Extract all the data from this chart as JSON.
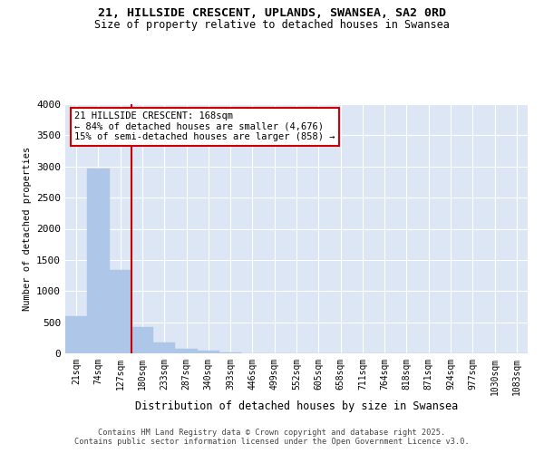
{
  "title": "21, HILLSIDE CRESCENT, UPLANDS, SWANSEA, SA2 0RD",
  "subtitle": "Size of property relative to detached houses in Swansea",
  "xlabel": "Distribution of detached houses by size in Swansea",
  "ylabel": "Number of detached properties",
  "bar_color": "#aec6e8",
  "bar_edge_color": "#aec6e8",
  "vline_color": "#cc0000",
  "vline_x": 2.5,
  "annotation_text": "21 HILLSIDE CRESCENT: 168sqm\n← 84% of detached houses are smaller (4,676)\n15% of semi-detached houses are larger (858) →",
  "annotation_box_color": "#cc0000",
  "background_color": "#dce6f5",
  "grid_color": "#ffffff",
  "categories": [
    "21sqm",
    "74sqm",
    "127sqm",
    "180sqm",
    "233sqm",
    "287sqm",
    "340sqm",
    "393sqm",
    "446sqm",
    "499sqm",
    "552sqm",
    "605sqm",
    "658sqm",
    "711sqm",
    "764sqm",
    "818sqm",
    "871sqm",
    "924sqm",
    "977sqm",
    "1030sqm",
    "1083sqm"
  ],
  "values": [
    590,
    2970,
    1340,
    420,
    170,
    80,
    45,
    15,
    0,
    0,
    0,
    0,
    0,
    0,
    0,
    0,
    0,
    0,
    0,
    0,
    0
  ],
  "ylim": [
    0,
    4000
  ],
  "yticks": [
    0,
    500,
    1000,
    1500,
    2000,
    2500,
    3000,
    3500,
    4000
  ],
  "footer_line1": "Contains HM Land Registry data © Crown copyright and database right 2025.",
  "footer_line2": "Contains public sector information licensed under the Open Government Licence v3.0."
}
